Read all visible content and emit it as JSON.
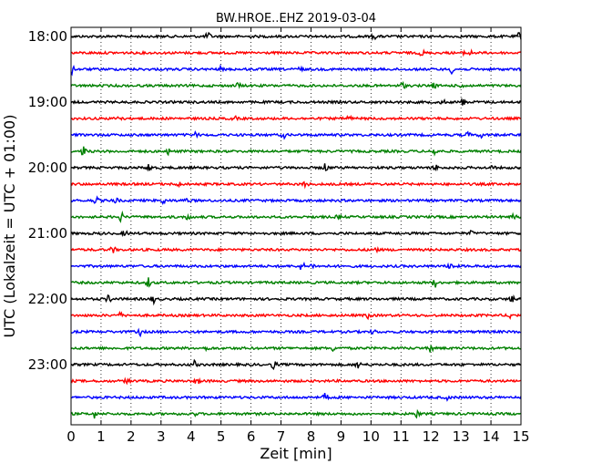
{
  "chart_data": {
    "type": "line",
    "title": "BW.HROE..EHZ 2019-03-04",
    "xlabel": "Zeit  [min]",
    "ylabel": "UTC (Lokalzeit = UTC + 01:00)",
    "xlim": [
      0,
      15
    ],
    "xticks": [
      0,
      1,
      2,
      3,
      4,
      5,
      6,
      7,
      8,
      9,
      10,
      11,
      12,
      13,
      14,
      15
    ],
    "grid": "vertical-dotted",
    "yticks": [
      "18:00",
      "19:00",
      "20:00",
      "21:00",
      "22:00",
      "23:00"
    ],
    "trace_interval_min": 15,
    "series_colors": [
      "#000000",
      "#ff0000",
      "#0000ff",
      "#008000"
    ],
    "traces": [
      {
        "start": "18:00",
        "color": "#000000"
      },
      {
        "start": "18:15",
        "color": "#ff0000"
      },
      {
        "start": "18:30",
        "color": "#0000ff"
      },
      {
        "start": "18:45",
        "color": "#008000"
      },
      {
        "start": "19:00",
        "color": "#000000"
      },
      {
        "start": "19:15",
        "color": "#ff0000"
      },
      {
        "start": "19:30",
        "color": "#0000ff"
      },
      {
        "start": "19:45",
        "color": "#008000"
      },
      {
        "start": "20:00",
        "color": "#000000"
      },
      {
        "start": "20:15",
        "color": "#ff0000"
      },
      {
        "start": "20:30",
        "color": "#0000ff"
      },
      {
        "start": "20:45",
        "color": "#008000"
      },
      {
        "start": "21:00",
        "color": "#000000"
      },
      {
        "start": "21:15",
        "color": "#ff0000"
      },
      {
        "start": "21:30",
        "color": "#0000ff"
      },
      {
        "start": "21:45",
        "color": "#008000"
      },
      {
        "start": "22:00",
        "color": "#000000"
      },
      {
        "start": "22:15",
        "color": "#ff0000"
      },
      {
        "start": "22:30",
        "color": "#0000ff"
      },
      {
        "start": "22:45",
        "color": "#008000"
      },
      {
        "start": "23:00",
        "color": "#000000"
      },
      {
        "start": "23:15",
        "color": "#ff0000"
      },
      {
        "start": "23:30",
        "color": "#0000ff"
      },
      {
        "start": "23:45",
        "color": "#008000"
      }
    ]
  }
}
